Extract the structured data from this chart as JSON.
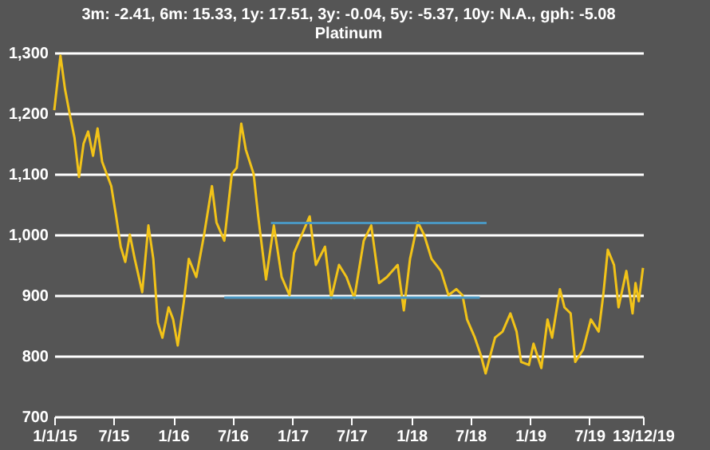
{
  "chart_data": {
    "type": "line",
    "title": "3m: -2.41,    6m: 15.33,    1y: 17.51,    3y: -0.04,    5y: -5.37,    10y: N.A.,    gph: -5.08",
    "subtitle": "Platinum",
    "xlim": [
      "2015-01-01",
      "2019-12-13"
    ],
    "xticks": [
      {
        "value": "2015-01-01",
        "label": "1/1/15"
      },
      {
        "value": "2015-07-01",
        "label": "7/15"
      },
      {
        "value": "2016-01-01",
        "label": "1/16"
      },
      {
        "value": "2016-07-01",
        "label": "7/16"
      },
      {
        "value": "2017-01-01",
        "label": "1/17"
      },
      {
        "value": "2017-07-01",
        "label": "7/17"
      },
      {
        "value": "2018-01-01",
        "label": "1/18"
      },
      {
        "value": "2018-07-01",
        "label": "7/18"
      },
      {
        "value": "2019-01-01",
        "label": "1/19"
      },
      {
        "value": "2019-07-01",
        "label": "7/19"
      },
      {
        "value": "2019-12-13",
        "label": "13/12/19"
      }
    ],
    "ylim": [
      700,
      1300
    ],
    "yticks": [
      {
        "value": 700,
        "label": "700"
      },
      {
        "value": 800,
        "label": "800"
      },
      {
        "value": 900,
        "label": "900"
      },
      {
        "value": 1000,
        "label": "1,000"
      },
      {
        "value": 1100,
        "label": "1,100"
      },
      {
        "value": 1200,
        "label": "1,200"
      },
      {
        "value": 1300,
        "label": "1,300"
      }
    ],
    "grid": "y",
    "series": [
      {
        "color": "#f2c318",
        "x": [
          "2015-01-01",
          "2015-01-20",
          "2015-02-03",
          "2015-02-17",
          "2015-03-04",
          "2015-03-18",
          "2015-04-01",
          "2015-04-15",
          "2015-04-30",
          "2015-05-14",
          "2015-05-28",
          "2015-06-11",
          "2015-06-25",
          "2015-07-10",
          "2015-07-24",
          "2015-08-07",
          "2015-08-21",
          "2015-09-05",
          "2015-09-28",
          "2015-10-17",
          "2015-11-01",
          "2015-11-15",
          "2015-11-29",
          "2015-12-18",
          "2016-01-01",
          "2016-01-15",
          "2016-02-03",
          "2016-02-18",
          "2016-03-12",
          "2016-04-05",
          "2016-04-29",
          "2016-05-13",
          "2016-06-06",
          "2016-06-29",
          "2016-07-14",
          "2016-07-28",
          "2016-08-11",
          "2016-09-04",
          "2016-09-18",
          "2016-10-12",
          "2016-11-05",
          "2016-11-29",
          "2016-12-23",
          "2017-01-06",
          "2017-01-30",
          "2017-02-23",
          "2017-03-14",
          "2017-04-11",
          "2017-04-30",
          "2017-05-24",
          "2017-06-16",
          "2017-07-10",
          "2017-08-08",
          "2017-08-31",
          "2017-09-24",
          "2017-10-18",
          "2017-11-20",
          "2017-12-09",
          "2017-12-28",
          "2018-01-21",
          "2018-02-09",
          "2018-03-04",
          "2018-04-02",
          "2018-04-25",
          "2018-05-19",
          "2018-06-07",
          "2018-06-21",
          "2018-07-15",
          "2018-08-03",
          "2018-08-17",
          "2018-08-31",
          "2018-09-15",
          "2018-10-08",
          "2018-11-01",
          "2018-11-20",
          "2018-12-04",
          "2018-12-28",
          "2019-01-11",
          "2019-02-04",
          "2019-02-23",
          "2019-03-09",
          "2019-04-02",
          "2019-04-16",
          "2019-05-05",
          "2019-05-19",
          "2019-06-12",
          "2019-07-06",
          "2019-07-30",
          "2019-08-13",
          "2019-08-27",
          "2019-09-15",
          "2019-09-29",
          "2019-10-23",
          "2019-11-11",
          "2019-11-20",
          "2019-11-30",
          "2019-12-13"
        ],
        "values": [
          1205,
          1295,
          1240,
          1200,
          1160,
          1095,
          1150,
          1170,
          1130,
          1175,
          1120,
          1100,
          1080,
          1030,
          980,
          955,
          1000,
          960,
          905,
          1015,
          960,
          855,
          830,
          880,
          860,
          817,
          890,
          960,
          930,
          1000,
          1080,
          1020,
          990,
          1100,
          1110,
          1183,
          1140,
          1100,
          1030,
          926,
          1015,
          930,
          900,
          970,
          1000,
          1030,
          950,
          980,
          895,
          950,
          930,
          895,
          990,
          1015,
          920,
          930,
          950,
          875,
          960,
          1020,
          1000,
          960,
          940,
          900,
          910,
          900,
          860,
          830,
          800,
          771,
          800,
          830,
          840,
          870,
          840,
          790,
          785,
          820,
          780,
          860,
          830,
          910,
          880,
          870,
          790,
          810,
          860,
          840,
          900,
          975,
          950,
          880,
          940,
          870,
          920,
          890,
          945
        ]
      },
      {
        "type": "line",
        "color": "#4a97c2",
        "x": [
          "2016-10-27",
          "2018-08-20"
        ],
        "values": [
          1019,
          1019
        ]
      },
      {
        "type": "line",
        "color": "#4a97c2",
        "x": [
          "2016-06-06",
          "2018-07-30"
        ],
        "values": [
          896,
          896
        ]
      }
    ]
  }
}
